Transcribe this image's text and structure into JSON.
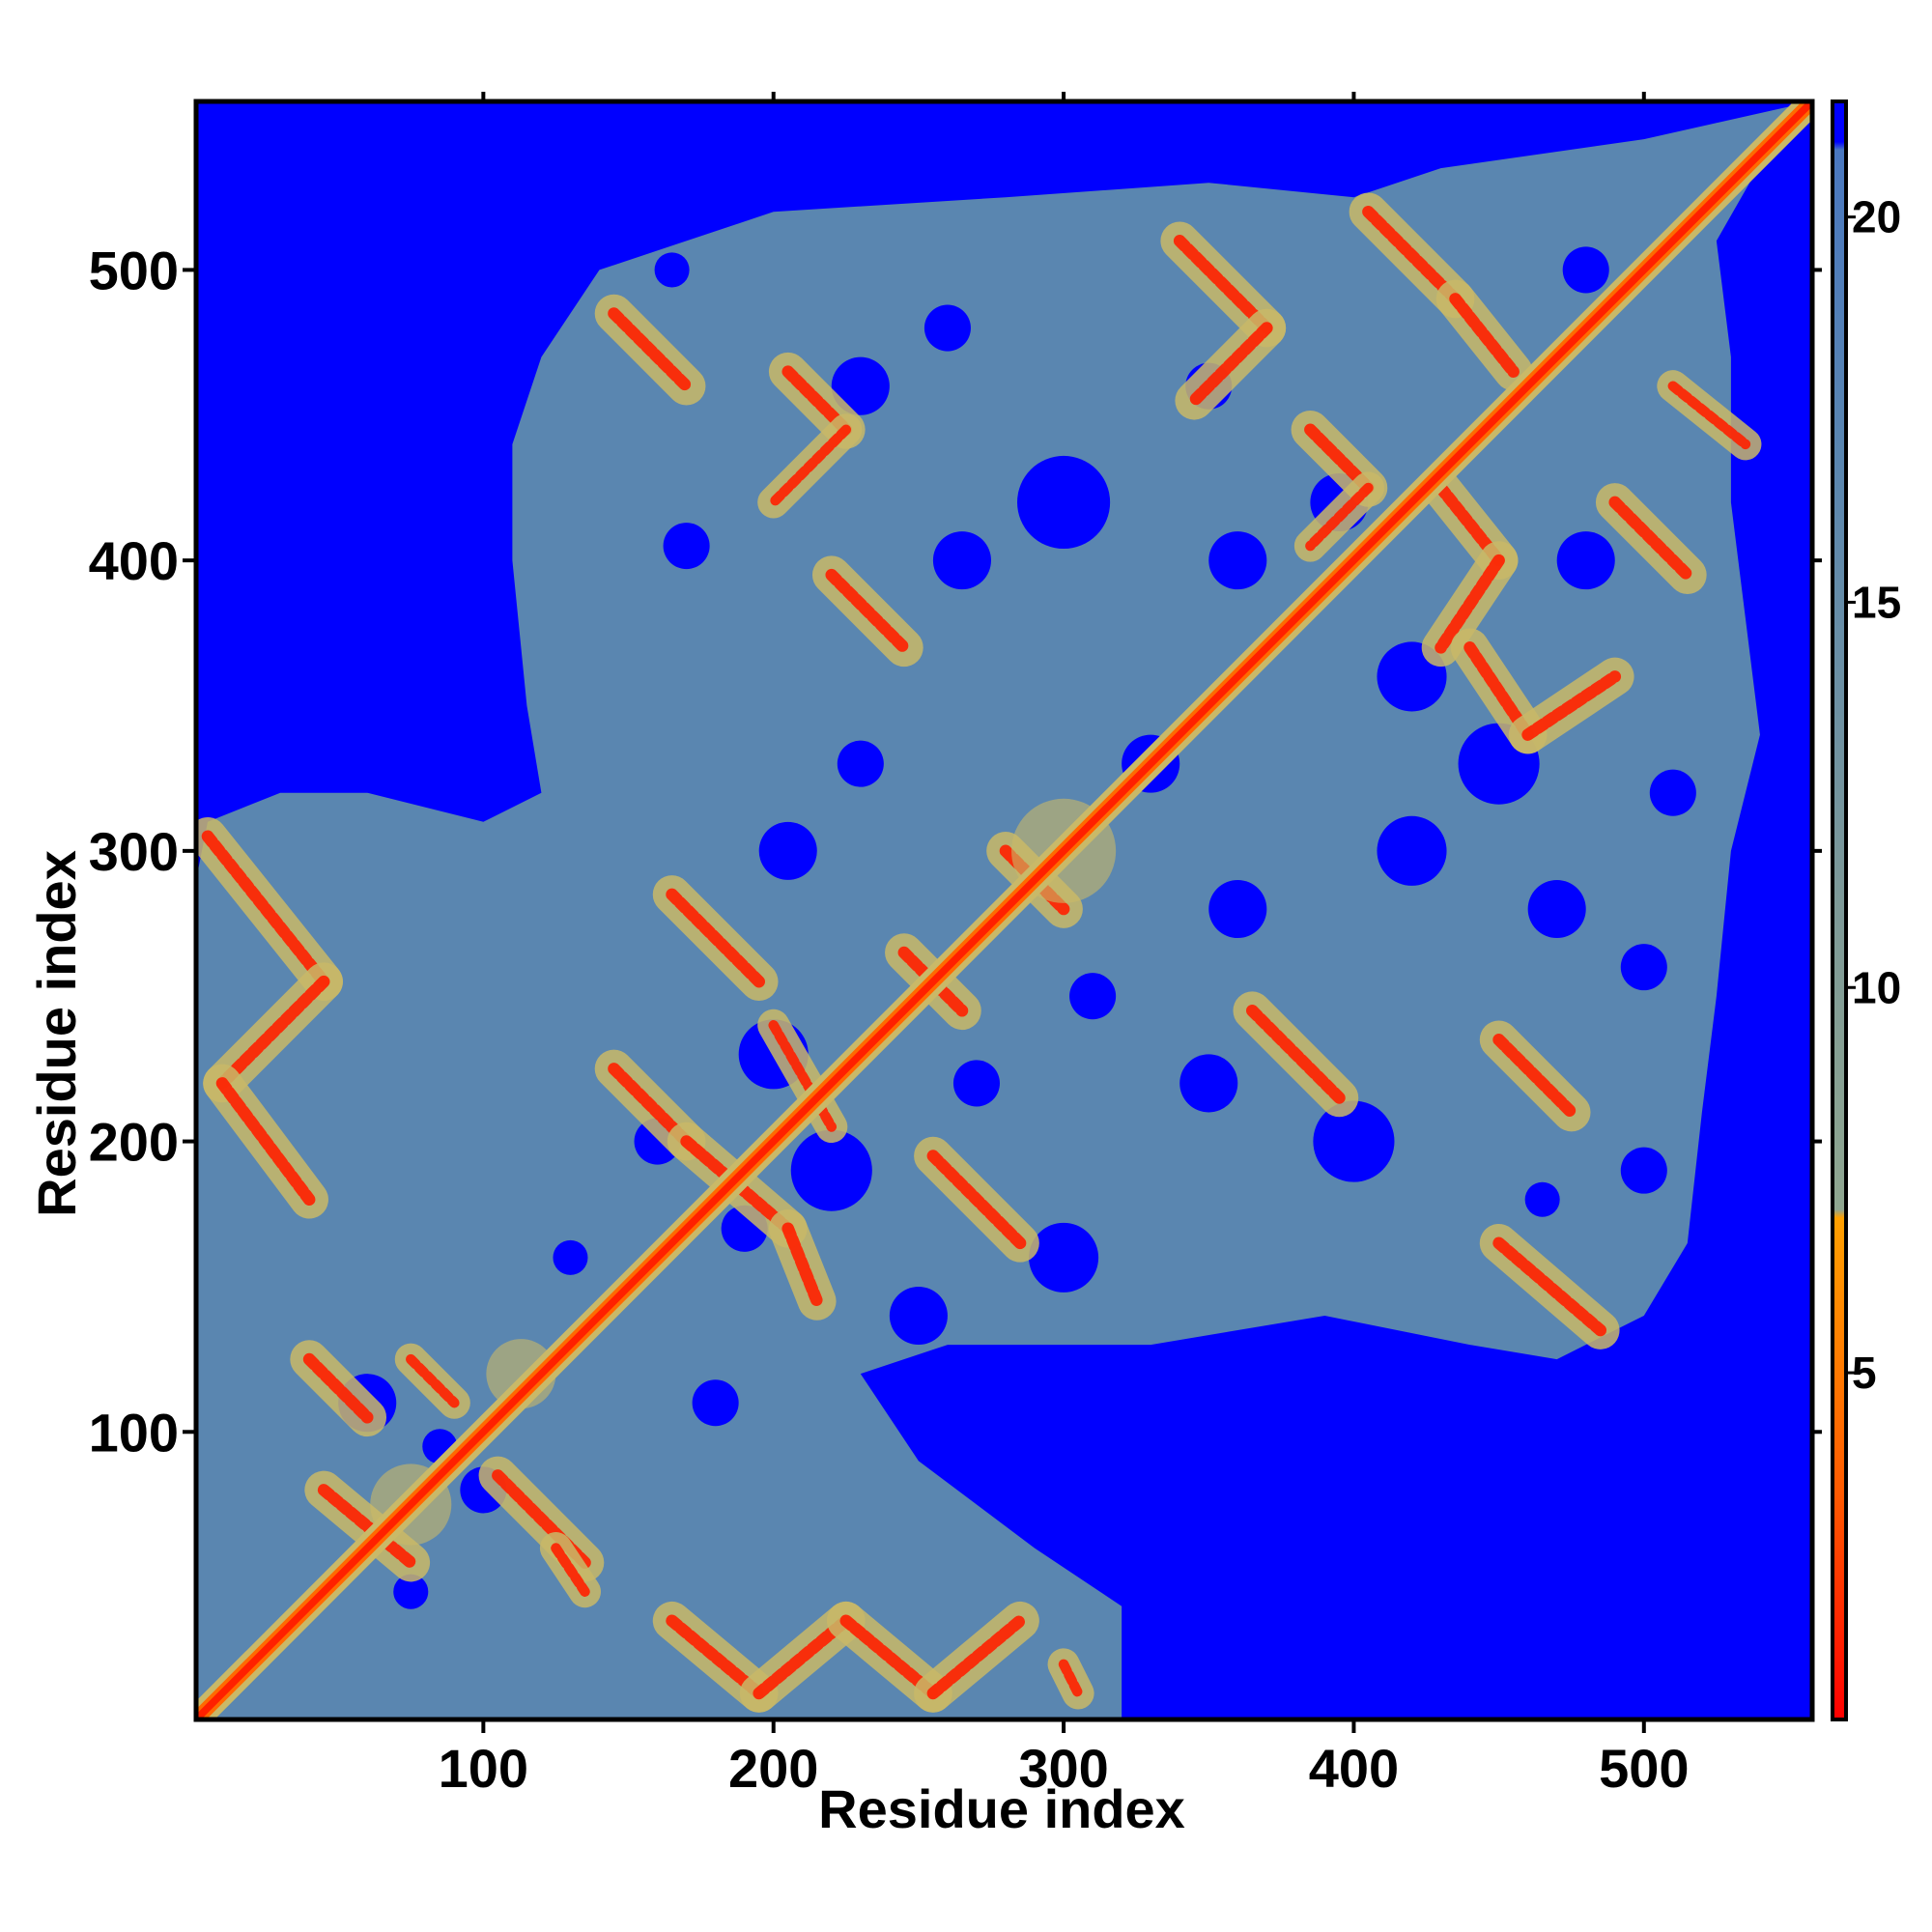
{
  "chart_data": {
    "type": "heatmap",
    "title": "",
    "xlabel": "Residue index",
    "ylabel": "Residue index",
    "xlim": [
      1,
      558
    ],
    "ylim": [
      1,
      558
    ],
    "x_ticks": [
      100,
      200,
      300,
      400,
      500
    ],
    "y_ticks": [
      100,
      200,
      300,
      400,
      500
    ],
    "grid": false,
    "colorbar": {
      "range": [
        0.5,
        21.5
      ],
      "ticks": [
        5,
        10,
        15,
        20
      ],
      "colors": {
        "low": "#ff0000",
        "mid": "#ff8c00",
        "high": "#5a86b0",
        "max": "#0000ff"
      }
    },
    "colors": {
      "background": "#0000ff",
      "contact_region": "#5a86b0",
      "contact_mid": "#c9b968",
      "contact_core": "#ff2000"
    },
    "diagonal_segments": [
      [
        1,
        558
      ]
    ],
    "contact_bands": [
      {
        "x": [
          5,
          45
        ],
        "y": [
          305,
          255
        ],
        "w": 6
      },
      {
        "x": [
          45,
          10
        ],
        "y": [
          255,
          220
        ],
        "w": 6
      },
      {
        "x": [
          10,
          40
        ],
        "y": [
          220,
          180
        ],
        "w": 6
      },
      {
        "x": [
          145,
          170
        ],
        "y": [
          485,
          460
        ],
        "w": 6
      },
      {
        "x": [
          205,
          225
        ],
        "y": [
          465,
          445
        ],
        "w": 6
      },
      {
        "x": [
          225,
          200
        ],
        "y": [
          445,
          420
        ],
        "w": 5
      },
      {
        "x": [
          220,
          245
        ],
        "y": [
          395,
          370
        ],
        "w": 6
      },
      {
        "x": [
          340,
          370
        ],
        "y": [
          510,
          480
        ],
        "w": 6
      },
      {
        "x": [
          370,
          345
        ],
        "y": [
          480,
          455
        ],
        "w": 6
      },
      {
        "x": [
          405,
          435
        ],
        "y": [
          520,
          490
        ],
        "w": 6
      },
      {
        "x": [
          435,
          455
        ],
        "y": [
          490,
          465
        ],
        "w": 6
      },
      {
        "x": [
          510,
          535
        ],
        "y": [
          460,
          440
        ],
        "w": 5
      },
      {
        "x": [
          490,
          515
        ],
        "y": [
          420,
          395
        ],
        "w": 6
      },
      {
        "x": [
          385,
          405
        ],
        "y": [
          445,
          425
        ],
        "w": 6
      },
      {
        "x": [
          405,
          385
        ],
        "y": [
          425,
          405
        ],
        "w": 5
      },
      {
        "x": [
          430,
          450
        ],
        "y": [
          425,
          400
        ],
        "w": 6
      },
      {
        "x": [
          450,
          430
        ],
        "y": [
          400,
          370
        ],
        "w": 6
      },
      {
        "x": [
          440,
          460
        ],
        "y": [
          370,
          340
        ],
        "w": 6
      },
      {
        "x": [
          460,
          490
        ],
        "y": [
          340,
          360
        ],
        "w": 6
      },
      {
        "x": [
          165,
          195
        ],
        "y": [
          285,
          255
        ],
        "w": 6
      },
      {
        "x": [
          145,
          170
        ],
        "y": [
          225,
          200
        ],
        "w": 6
      },
      {
        "x": [
          170,
          205
        ],
        "y": [
          200,
          170
        ],
        "w": 6
      },
      {
        "x": [
          205,
          215
        ],
        "y": [
          170,
          145
        ],
        "w": 6
      },
      {
        "x": [
          200,
          220
        ],
        "y": [
          240,
          205
        ],
        "w": 5
      },
      {
        "x": [
          255,
          285
        ],
        "y": [
          195,
          165
        ],
        "w": 6
      },
      {
        "x": [
          280,
          300
        ],
        "y": [
          300,
          280
        ],
        "w": 6
      },
      {
        "x": [
          245,
          265
        ],
        "y": [
          265,
          245
        ],
        "w": 6
      },
      {
        "x": [
          365,
          395
        ],
        "y": [
          245,
          215
        ],
        "w": 6
      },
      {
        "x": [
          450,
          475
        ],
        "y": [
          235,
          210
        ],
        "w": 6
      },
      {
        "x": [
          450,
          485
        ],
        "y": [
          165,
          135
        ],
        "w": 6
      },
      {
        "x": [
          165,
          195
        ],
        "y": [
          35,
          10
        ],
        "w": 6
      },
      {
        "x": [
          195,
          225
        ],
        "y": [
          10,
          35
        ],
        "w": 6
      },
      {
        "x": [
          225,
          255
        ],
        "y": [
          35,
          10
        ],
        "w": 6
      },
      {
        "x": [
          255,
          285
        ],
        "y": [
          10,
          35
        ],
        "w": 6
      },
      {
        "x": [
          40,
          60
        ],
        "y": [
          125,
          105
        ],
        "w": 6
      },
      {
        "x": [
          75,
          90
        ],
        "y": [
          125,
          110
        ],
        "w": 5
      },
      {
        "x": [
          45,
          75
        ],
        "y": [
          80,
          55
        ],
        "w": 6
      },
      {
        "x": [
          105,
          135
        ],
        "y": [
          85,
          55
        ],
        "w": 6
      },
      {
        "x": [
          125,
          135
        ],
        "y": [
          60,
          45
        ],
        "w": 5
      },
      {
        "x": [
          300,
          305
        ],
        "y": [
          20,
          10
        ],
        "w": 5
      }
    ],
    "contact_blobs": [
      {
        "x": 300,
        "y": 300,
        "r": 18
      },
      {
        "x": 75,
        "y": 75,
        "r": 14
      },
      {
        "x": 113,
        "y": 120,
        "r": 12
      }
    ]
  }
}
